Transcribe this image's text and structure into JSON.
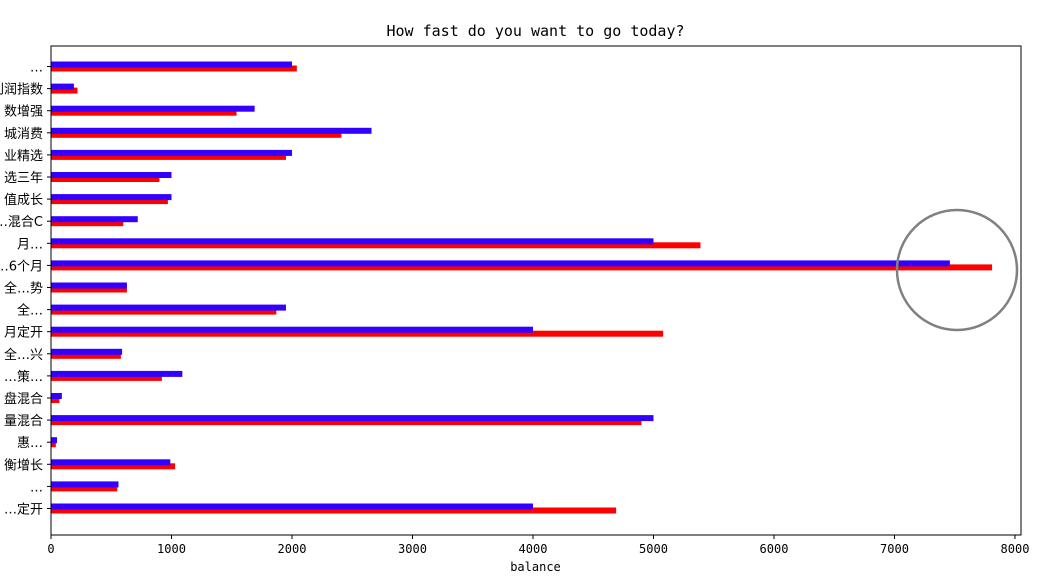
{
  "chart_data": {
    "type": "bar",
    "orientation": "horizontal",
    "title": "How fast do you want to go today?",
    "xlabel": "balance",
    "ylabel": "",
    "xlim": [
      0,
      8050
    ],
    "xticks": [
      0,
      1000,
      2000,
      3000,
      4000,
      5000,
      6000,
      7000,
      8000
    ],
    "grid": false,
    "categories": [
      "…",
      "利润指数",
      "数增强",
      "城消费",
      "业精选",
      "选三年",
      "值成长",
      "…混合C",
      "月…",
      "…6个月",
      "全…势",
      "全…",
      "月定开",
      "全…兴",
      "…策…",
      "盘混合",
      "量混合",
      "惠…",
      "衡增长",
      "…",
      "…定开"
    ],
    "series": [
      {
        "color": "#ff0000",
        "values": [
          2040,
          220,
          1540,
          2410,
          1950,
          900,
          970,
          600,
          5390,
          7810,
          630,
          1870,
          5080,
          580,
          920,
          70,
          4900,
          40,
          1030,
          550,
          4690
        ]
      },
      {
        "color": "#3300ff",
        "values": [
          2000,
          190,
          1690,
          2660,
          2000,
          1000,
          1000,
          720,
          5000,
          7460,
          630,
          1950,
          4000,
          590,
          1090,
          90,
          5000,
          50,
          990,
          560,
          4000
        ]
      }
    ],
    "annotation": {
      "shape": "circle",
      "color": "#808080"
    }
  }
}
